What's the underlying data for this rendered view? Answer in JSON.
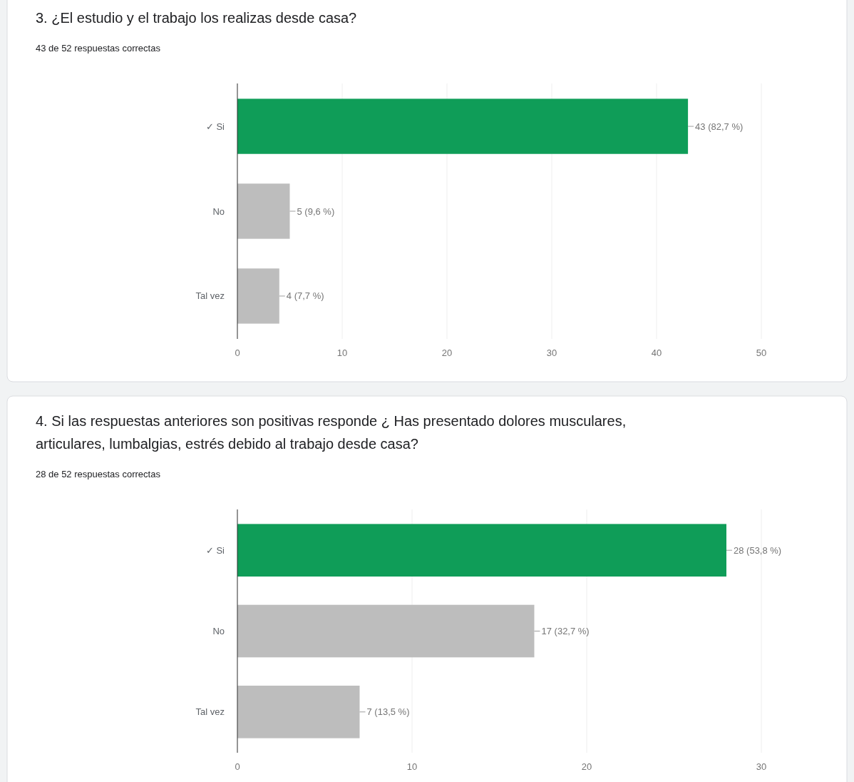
{
  "chart_data": [
    {
      "type": "bar",
      "orientation": "horizontal",
      "title": "3. ¿El estudio y el trabajo los realizas desde casa?",
      "subtitle": "43 de 52 respuestas correctas",
      "categories": [
        "✓ Si",
        "No",
        "Tal vez"
      ],
      "values": [
        43,
        5,
        4
      ],
      "colors": [
        "#0f9d58",
        "#bdbdbd",
        "#bdbdbd"
      ],
      "value_labels": [
        "43 (82,7 %)",
        "5 (9,6 %)",
        "4 (7,7 %)"
      ],
      "xlim": [
        0,
        50
      ],
      "xticks": [
        0,
        10,
        20,
        30,
        40,
        50
      ],
      "grid": "x"
    },
    {
      "type": "bar",
      "orientation": "horizontal",
      "title": "4. Si las respuestas anteriores son positivas responde ¿ Has presentado dolores musculares, articulares, lumbalgias, estrés debido al trabajo desde casa?",
      "subtitle": "28 de 52 respuestas correctas",
      "categories": [
        "✓ Si",
        "No",
        "Tal vez"
      ],
      "values": [
        28,
        17,
        7
      ],
      "colors": [
        "#0f9d58",
        "#bdbdbd",
        "#bdbdbd"
      ],
      "value_labels": [
        "28 (53,8 %)",
        "17 (32,7 %)",
        "7 (13,5 %)"
      ],
      "xlim": [
        0,
        30
      ],
      "xticks": [
        0,
        10,
        20,
        30
      ],
      "grid": "x"
    }
  ]
}
